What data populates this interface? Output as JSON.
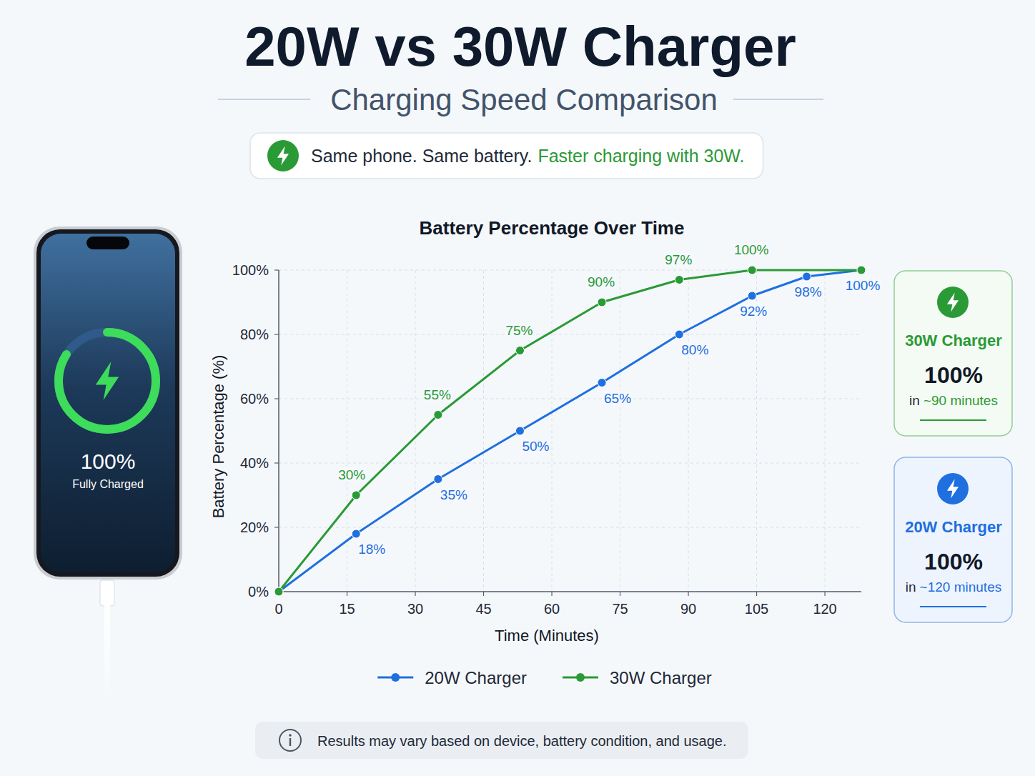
{
  "header": {
    "title": "20W vs 30W Charger",
    "subtitle": "Charging Speed Comparison"
  },
  "banner": {
    "text": "Same phone. Same battery.",
    "highlight": "Faster charging with 30W."
  },
  "phone": {
    "percent": "100%",
    "status": "Fully Charged"
  },
  "chart_data": {
    "type": "line",
    "title": "Battery Percentage Over Time",
    "x_label": "Time (Minutes)",
    "y_label": "Battery Percentage (%)",
    "xlim": [
      0,
      128
    ],
    "ylim": [
      0,
      100
    ],
    "xticks": [
      0,
      15,
      30,
      45,
      60,
      75,
      90,
      105,
      120
    ],
    "yticks": [
      {
        "value": 0,
        "label": "0%"
      },
      {
        "value": 20,
        "label": "20%"
      },
      {
        "value": 40,
        "label": "40%"
      },
      {
        "value": 60,
        "label": "60%"
      },
      {
        "value": 80,
        "label": "80%"
      },
      {
        "value": 100,
        "label": "100%"
      }
    ],
    "grid": true,
    "legend": "bottom",
    "data_labels": true,
    "marker": "circle",
    "series": [
      {
        "name": "20W Charger",
        "color": "#1f6fe0",
        "x": [
          0,
          17,
          35,
          53,
          71,
          88,
          104,
          116,
          128
        ],
        "values": [
          0,
          18,
          35,
          50,
          65,
          80,
          92,
          98,
          100
        ],
        "value_labels": [
          null,
          "18%",
          "35%",
          "50%",
          "65%",
          "80%",
          "92%",
          "98%",
          "100%"
        ]
      },
      {
        "name": "30W Charger",
        "color": "#2a9a36",
        "x": [
          0,
          17,
          35,
          53,
          71,
          88,
          104,
          128
        ],
        "values": [
          0,
          30,
          55,
          75,
          90,
          97,
          100,
          100
        ],
        "value_labels": [
          null,
          "30%",
          "55%",
          "75%",
          "90%",
          "97%",
          "100%",
          null
        ]
      }
    ]
  },
  "cards": [
    {
      "title": "30W Charger",
      "value": "100%",
      "prefix": "in",
      "time": "~90 minutes",
      "color": "#2a9a36"
    },
    {
      "title": "20W Charger",
      "value": "100%",
      "prefix": "in",
      "time": "~120 minutes",
      "color": "#1f6fe0"
    }
  ],
  "footnote": "Results may vary based on device, battery condition, and usage."
}
